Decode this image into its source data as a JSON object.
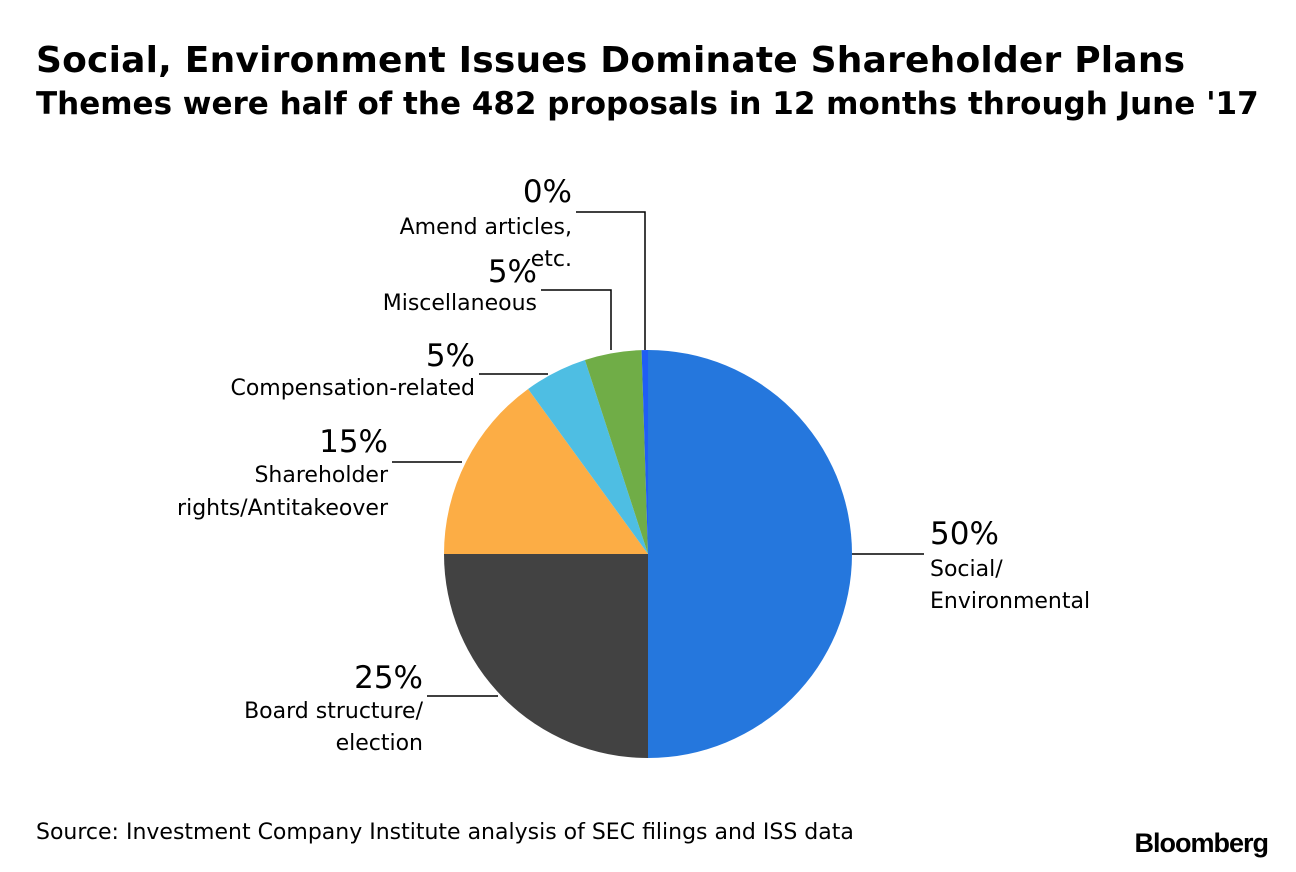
{
  "header": {
    "title": "Social, Environment Issues Dominate Shareholder Plans",
    "subtitle": "Themes were half of the 482 proposals in 12 months through June '17"
  },
  "footer": {
    "source": "Source: Investment Company Institute analysis of SEC filings and ISS data",
    "brand": "Bloomberg"
  },
  "chart_data": {
    "type": "pie",
    "start_angle_deg": 0,
    "direction": "clockwise",
    "slices": [
      {
        "label": [
          "Social/",
          "Environmental"
        ],
        "value": 50,
        "pct_label": "50%",
        "color": "#2577DD"
      },
      {
        "label": [
          "Board structure/",
          "election"
        ],
        "value": 25,
        "pct_label": "25%",
        "color": "#424242"
      },
      {
        "label": [
          "Shareholder",
          "rights/Antitakeover"
        ],
        "value": 15,
        "pct_label": "15%",
        "color": "#FCAD45"
      },
      {
        "label": [
          "Compensation-related"
        ],
        "value": 5,
        "pct_label": "5%",
        "color": "#4EBEE3"
      },
      {
        "label": [
          "Miscellaneous"
        ],
        "value": 4.5,
        "pct_label": "5%",
        "color": "#70AD47"
      },
      {
        "label": [
          "Amend articles,",
          "etc."
        ],
        "value": 0.5,
        "pct_label": "0%",
        "color": "#1F5EF5"
      }
    ]
  }
}
